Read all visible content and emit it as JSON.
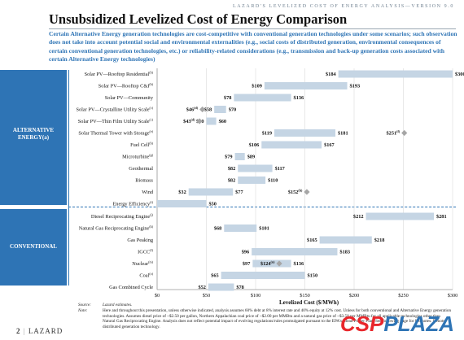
{
  "header": {
    "kicker": "LAZARD'S LEVELIZED COST OF ENERGY ANALYSIS—VERSION 9.0",
    "title": "Unsubsidized Levelized Cost of Energy Comparison",
    "subtitle": "Certain Alternative Energy generation technologies are cost-competitive with conventional generation technologies under some scenarios; such observation does not take into account potential social and environmental externalities (e.g., social costs of distributed generation, environmental consequences of certain conventional generation technologies, etc.) or reliability-related considerations (e.g., transmission and back-up generation costs associated with certain Alternative Energy technologies)"
  },
  "categories": {
    "alternative": "ALTERNATIVE\nENERGY(a)",
    "conventional": "CONVENTIONAL"
  },
  "colors": {
    "accent": "#2e74b5",
    "bar": "#c5d5e4",
    "marker": "#a6a6a6"
  },
  "chart_data": {
    "type": "bar",
    "orientation": "horizontal-range",
    "xlabel": "Levelized Cost ($/MWh)",
    "xlim": [
      0,
      300
    ],
    "xticks": [
      "$0",
      "$50",
      "$100",
      "$150",
      "$200",
      "$250",
      "$300"
    ],
    "grid": true,
    "rows": [
      {
        "label": "Solar PV—Rooftop Residential",
        "sup": "(b)",
        "low": 184,
        "high": 300,
        "low_label": "$184",
        "high_label": "$300"
      },
      {
        "label": "Solar PV—Rooftop C&I",
        "sup": "(b)",
        "low": 109,
        "high": 193,
        "low_label": "$109",
        "high_label": "$193"
      },
      {
        "label": "Solar PV—Community",
        "sup": "",
        "low": 78,
        "high": 136,
        "low_label": "$78",
        "high_label": "$136"
      },
      {
        "label": "Solar PV—Crystalline Utility Scale",
        "sup": "(c)",
        "low": 58,
        "high": 70,
        "low_label": "$58",
        "high_label": "$70",
        "marker": 46,
        "marker_label": "$46",
        "marker_sup": "(d)"
      },
      {
        "label": "Solar PV—Thin Film Utility Scale",
        "sup": "(c)",
        "low": 50,
        "high": 60,
        "low_label": "$50",
        "high_label": "$60",
        "marker": 43,
        "marker_label": "$43",
        "marker_sup": "(d)"
      },
      {
        "label": "Solar Thermal Tower with Storage",
        "sup": "(e)",
        "low": 119,
        "high": 181,
        "low_label": "$119",
        "high_label": "$181",
        "marker": 251,
        "marker_label": "$251",
        "marker_sup": "(f)"
      },
      {
        "label": "Fuel Cell",
        "sup": "(b)",
        "low": 106,
        "high": 167,
        "low_label": "$106",
        "high_label": "$167"
      },
      {
        "label": "Microturbine",
        "sup": "(g)",
        "low": 79,
        "high": 89,
        "low_label": "$79",
        "high_label": "$89"
      },
      {
        "label": "Geothermal",
        "sup": "",
        "low": 82,
        "high": 117,
        "low_label": "$82",
        "high_label": "$117"
      },
      {
        "label": "Biomass",
        "sup": "",
        "low": 82,
        "high": 110,
        "low_label": "$82",
        "high_label": "$110"
      },
      {
        "label": "Wind",
        "sup": "",
        "low": 32,
        "high": 77,
        "low_label": "$32",
        "high_label": "$77",
        "marker": 152,
        "marker_label": "$152",
        "marker_sup": "(h)"
      },
      {
        "label": "Energy Efficiency",
        "sup": "(i)",
        "low": 0,
        "high": 50,
        "low_label": "",
        "high_label": "$50"
      },
      {
        "label": "Diesel Reciprocating Engine",
        "sup": "(j)",
        "low": 212,
        "high": 281,
        "low_label": "$212",
        "high_label": "$281"
      },
      {
        "label": "Natural Gas Reciprocating Engine",
        "sup": "(k)",
        "low": 68,
        "high": 101,
        "low_label": "$68",
        "high_label": "$101"
      },
      {
        "label": "Gas Peaking",
        "sup": "",
        "low": 165,
        "high": 218,
        "low_label": "$165",
        "high_label": "$218"
      },
      {
        "label": "IGCC",
        "sup": "(l)",
        "low": 96,
        "high": 183,
        "low_label": "$96",
        "high_label": "$183"
      },
      {
        "label": "Nuclear",
        "sup": "(m)",
        "low": 97,
        "high": 136,
        "low_label": "$97",
        "high_label": "$136",
        "marker": 124,
        "marker_label": "$124",
        "marker_sup": "(n)"
      },
      {
        "label": "Coal",
        "sup": "(o)",
        "low": 65,
        "high": 150,
        "low_label": "$65",
        "high_label": "$150"
      },
      {
        "label": "Gas Combined Cycle",
        "sup": "",
        "low": 52,
        "high": 78,
        "low_label": "$52",
        "high_label": "$78"
      }
    ]
  },
  "footnotes": {
    "source_key": "Source:",
    "source_text": "Lazard estimates.",
    "note_key": "Note:",
    "note_text": "Here and throughout this presentation, unless otherwise indicated, analysis assumes 60% debt at 8% interest rate and 40% equity at 12% cost. Unless for both conventional and Alternative Energy generation technologies. Assumes diesel price of ~$2.50 per gallon, Northern Appalachian coal price of ~$2.00 per MMBtu and a natural gas price of ~$3.50 per MMBtu for all applicable technologies other than Natural Gas Reciprocating Engine. Analysis does not reflect potential impact of evolving regulations/rules promulgated pursuant to the EPA's Clean Power Plan. See following page for footnotes. Denotes distributed generation technology."
  },
  "footer": {
    "page": "2",
    "brand": "LAZARD"
  },
  "watermark": {
    "part1": "CSP",
    "part2": "PLAZA"
  }
}
